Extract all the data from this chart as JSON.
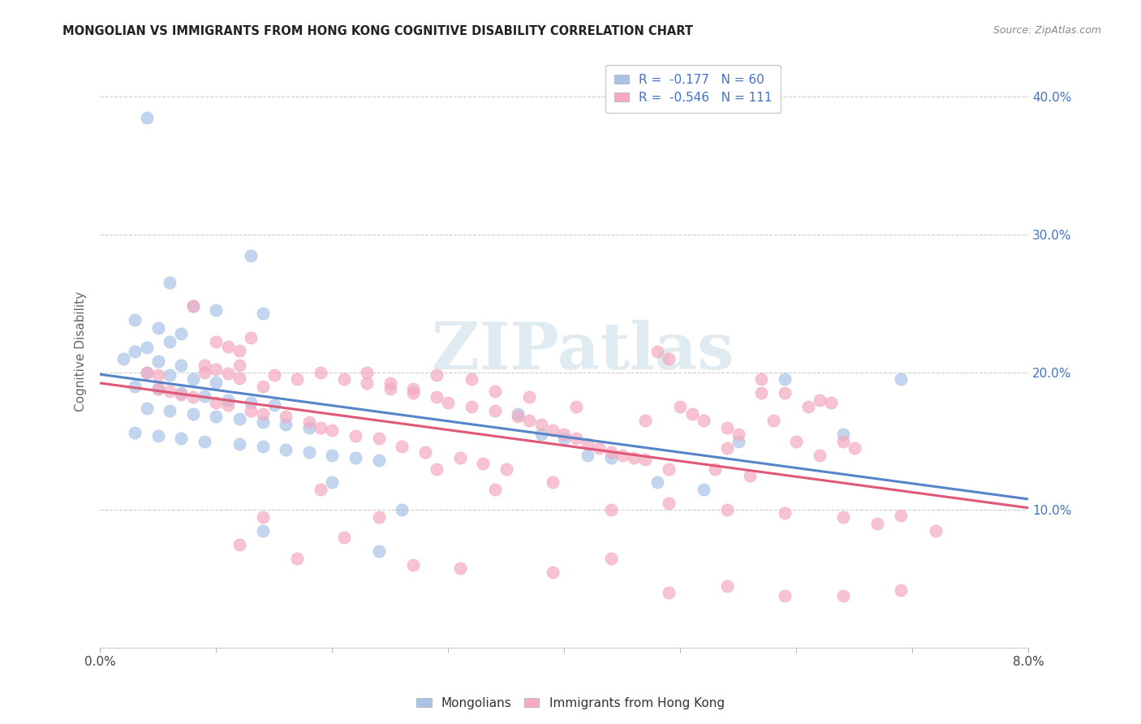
{
  "title": "MONGOLIAN VS IMMIGRANTS FROM HONG KONG COGNITIVE DISABILITY CORRELATION CHART",
  "source": "Source: ZipAtlas.com",
  "ylabel": "Cognitive Disability",
  "ytick_vals": [
    0.1,
    0.2,
    0.3,
    0.4
  ],
  "xlim": [
    0.0,
    0.08
  ],
  "ylim": [
    0.0,
    0.43
  ],
  "bottom_legend": [
    "Mongolians",
    "Immigrants from Hong Kong"
  ],
  "mongolian_color": "#aac4e8",
  "hk_color": "#f4aabf",
  "mongolian_line_color": "#5585c8",
  "hk_line_color": "#e05878",
  "watermark": "ZIPatlas",
  "mongolian_R": -0.177,
  "mongolian_N": 60,
  "hk_R": -0.546,
  "hk_N": 111,
  "mongolian_points": [
    [
      0.004,
      0.385
    ],
    [
      0.006,
      0.265
    ],
    [
      0.013,
      0.285
    ],
    [
      0.014,
      0.243
    ],
    [
      0.008,
      0.248
    ],
    [
      0.01,
      0.245
    ],
    [
      0.003,
      0.238
    ],
    [
      0.005,
      0.232
    ],
    [
      0.007,
      0.228
    ],
    [
      0.006,
      0.222
    ],
    [
      0.004,
      0.218
    ],
    [
      0.003,
      0.215
    ],
    [
      0.002,
      0.21
    ],
    [
      0.005,
      0.208
    ],
    [
      0.007,
      0.205
    ],
    [
      0.004,
      0.2
    ],
    [
      0.006,
      0.198
    ],
    [
      0.008,
      0.195
    ],
    [
      0.01,
      0.193
    ],
    [
      0.003,
      0.19
    ],
    [
      0.005,
      0.188
    ],
    [
      0.007,
      0.185
    ],
    [
      0.009,
      0.183
    ],
    [
      0.011,
      0.18
    ],
    [
      0.013,
      0.178
    ],
    [
      0.015,
      0.176
    ],
    [
      0.004,
      0.174
    ],
    [
      0.006,
      0.172
    ],
    [
      0.008,
      0.17
    ],
    [
      0.01,
      0.168
    ],
    [
      0.012,
      0.166
    ],
    [
      0.014,
      0.164
    ],
    [
      0.016,
      0.162
    ],
    [
      0.018,
      0.16
    ],
    [
      0.003,
      0.156
    ],
    [
      0.005,
      0.154
    ],
    [
      0.007,
      0.152
    ],
    [
      0.009,
      0.15
    ],
    [
      0.012,
      0.148
    ],
    [
      0.014,
      0.146
    ],
    [
      0.016,
      0.144
    ],
    [
      0.018,
      0.142
    ],
    [
      0.02,
      0.14
    ],
    [
      0.022,
      0.138
    ],
    [
      0.024,
      0.136
    ],
    [
      0.036,
      0.17
    ],
    [
      0.038,
      0.155
    ],
    [
      0.04,
      0.152
    ],
    [
      0.042,
      0.14
    ],
    [
      0.044,
      0.138
    ],
    [
      0.048,
      0.12
    ],
    [
      0.052,
      0.115
    ],
    [
      0.055,
      0.15
    ],
    [
      0.059,
      0.195
    ],
    [
      0.064,
      0.155
    ],
    [
      0.069,
      0.195
    ],
    [
      0.014,
      0.085
    ],
    [
      0.024,
      0.07
    ],
    [
      0.02,
      0.12
    ],
    [
      0.026,
      0.1
    ]
  ],
  "hk_points": [
    [
      0.008,
      0.248
    ],
    [
      0.01,
      0.222
    ],
    [
      0.011,
      0.219
    ],
    [
      0.012,
      0.216
    ],
    [
      0.009,
      0.205
    ],
    [
      0.01,
      0.202
    ],
    [
      0.011,
      0.199
    ],
    [
      0.012,
      0.196
    ],
    [
      0.013,
      0.225
    ],
    [
      0.014,
      0.19
    ],
    [
      0.005,
      0.188
    ],
    [
      0.006,
      0.186
    ],
    [
      0.007,
      0.184
    ],
    [
      0.008,
      0.182
    ],
    [
      0.009,
      0.2
    ],
    [
      0.01,
      0.178
    ],
    [
      0.011,
      0.176
    ],
    [
      0.012,
      0.205
    ],
    [
      0.013,
      0.172
    ],
    [
      0.014,
      0.17
    ],
    [
      0.015,
      0.198
    ],
    [
      0.016,
      0.168
    ],
    [
      0.017,
      0.195
    ],
    [
      0.018,
      0.164
    ],
    [
      0.004,
      0.2
    ],
    [
      0.005,
      0.198
    ],
    [
      0.019,
      0.16
    ],
    [
      0.02,
      0.158
    ],
    [
      0.021,
      0.195
    ],
    [
      0.022,
      0.154
    ],
    [
      0.023,
      0.192
    ],
    [
      0.024,
      0.152
    ],
    [
      0.025,
      0.188
    ],
    [
      0.026,
      0.146
    ],
    [
      0.027,
      0.185
    ],
    [
      0.028,
      0.142
    ],
    [
      0.029,
      0.182
    ],
    [
      0.03,
      0.178
    ],
    [
      0.031,
      0.138
    ],
    [
      0.032,
      0.175
    ],
    [
      0.033,
      0.134
    ],
    [
      0.034,
      0.172
    ],
    [
      0.035,
      0.13
    ],
    [
      0.036,
      0.168
    ],
    [
      0.037,
      0.165
    ],
    [
      0.038,
      0.162
    ],
    [
      0.039,
      0.158
    ],
    [
      0.04,
      0.155
    ],
    [
      0.041,
      0.152
    ],
    [
      0.042,
      0.148
    ],
    [
      0.043,
      0.145
    ],
    [
      0.044,
      0.142
    ],
    [
      0.045,
      0.14
    ],
    [
      0.046,
      0.138
    ],
    [
      0.047,
      0.137
    ],
    [
      0.048,
      0.215
    ],
    [
      0.049,
      0.21
    ],
    [
      0.05,
      0.175
    ],
    [
      0.051,
      0.17
    ],
    [
      0.052,
      0.165
    ],
    [
      0.053,
      0.13
    ],
    [
      0.054,
      0.16
    ],
    [
      0.055,
      0.155
    ],
    [
      0.056,
      0.125
    ],
    [
      0.057,
      0.195
    ],
    [
      0.058,
      0.165
    ],
    [
      0.059,
      0.185
    ],
    [
      0.06,
      0.15
    ],
    [
      0.061,
      0.175
    ],
    [
      0.062,
      0.14
    ],
    [
      0.063,
      0.178
    ],
    [
      0.064,
      0.15
    ],
    [
      0.065,
      0.145
    ],
    [
      0.014,
      0.095
    ],
    [
      0.019,
      0.115
    ],
    [
      0.024,
      0.095
    ],
    [
      0.029,
      0.13
    ],
    [
      0.034,
      0.115
    ],
    [
      0.039,
      0.12
    ],
    [
      0.044,
      0.1
    ],
    [
      0.049,
      0.105
    ],
    [
      0.054,
      0.1
    ],
    [
      0.059,
      0.098
    ],
    [
      0.064,
      0.095
    ],
    [
      0.069,
      0.096
    ],
    [
      0.012,
      0.075
    ],
    [
      0.017,
      0.065
    ],
    [
      0.021,
      0.08
    ],
    [
      0.027,
      0.06
    ],
    [
      0.031,
      0.058
    ],
    [
      0.039,
      0.055
    ],
    [
      0.044,
      0.065
    ],
    [
      0.049,
      0.04
    ],
    [
      0.054,
      0.045
    ],
    [
      0.059,
      0.038
    ],
    [
      0.064,
      0.038
    ],
    [
      0.069,
      0.042
    ],
    [
      0.029,
      0.198
    ],
    [
      0.032,
      0.195
    ],
    [
      0.019,
      0.2
    ],
    [
      0.023,
      0.2
    ],
    [
      0.025,
      0.192
    ],
    [
      0.027,
      0.188
    ],
    [
      0.034,
      0.186
    ],
    [
      0.037,
      0.182
    ],
    [
      0.041,
      0.175
    ],
    [
      0.047,
      0.165
    ],
    [
      0.049,
      0.13
    ],
    [
      0.054,
      0.145
    ],
    [
      0.057,
      0.185
    ],
    [
      0.062,
      0.18
    ],
    [
      0.067,
      0.09
    ],
    [
      0.072,
      0.085
    ]
  ]
}
